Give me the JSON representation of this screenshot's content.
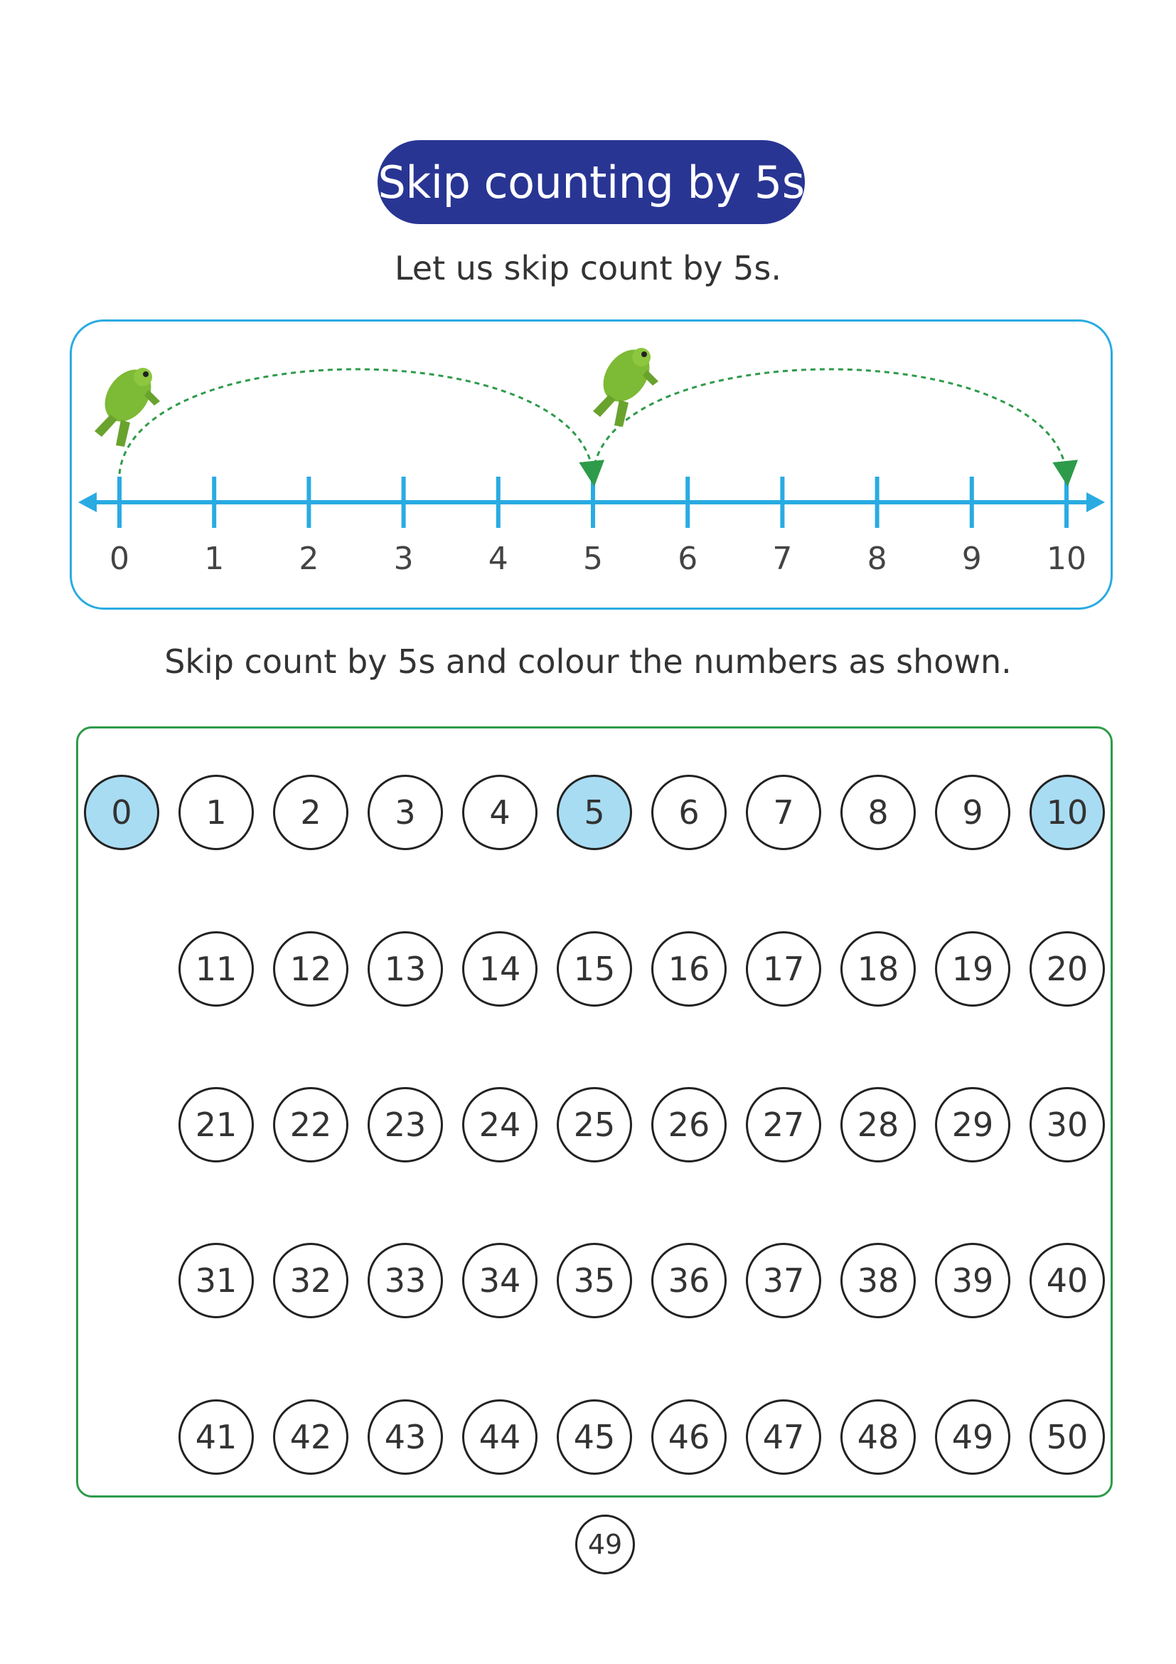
{
  "title": "Skip counting by 5s",
  "instruction_1": "Let us skip count by 5s.",
  "instruction_2": "Skip count by 5s and colour the numbers as shown.",
  "number_line": {
    "labels": [
      "0",
      "1",
      "2",
      "3",
      "4",
      "5",
      "6",
      "7",
      "8",
      "9",
      "10"
    ],
    "jumps": [
      [
        0,
        5
      ],
      [
        5,
        10
      ]
    ],
    "line_color": "#29abe2",
    "arc_color": "#2e9b4a"
  },
  "grid": {
    "rows": [
      [
        "0",
        "1",
        "2",
        "3",
        "4",
        "5",
        "6",
        "7",
        "8",
        "9",
        "10"
      ],
      [
        "11",
        "12",
        "13",
        "14",
        "15",
        "16",
        "17",
        "18",
        "19",
        "20"
      ],
      [
        "21",
        "22",
        "23",
        "24",
        "25",
        "26",
        "27",
        "28",
        "29",
        "30"
      ],
      [
        "31",
        "32",
        "33",
        "34",
        "35",
        "36",
        "37",
        "38",
        "39",
        "40"
      ],
      [
        "41",
        "42",
        "43",
        "44",
        "45",
        "46",
        "47",
        "48",
        "49",
        "50"
      ]
    ],
    "highlighted": [
      "0",
      "5",
      "10"
    ],
    "highlight_color": "#a8dcf3"
  },
  "page_number": "49",
  "icons": [
    "frog-icon",
    "frog-icon"
  ]
}
